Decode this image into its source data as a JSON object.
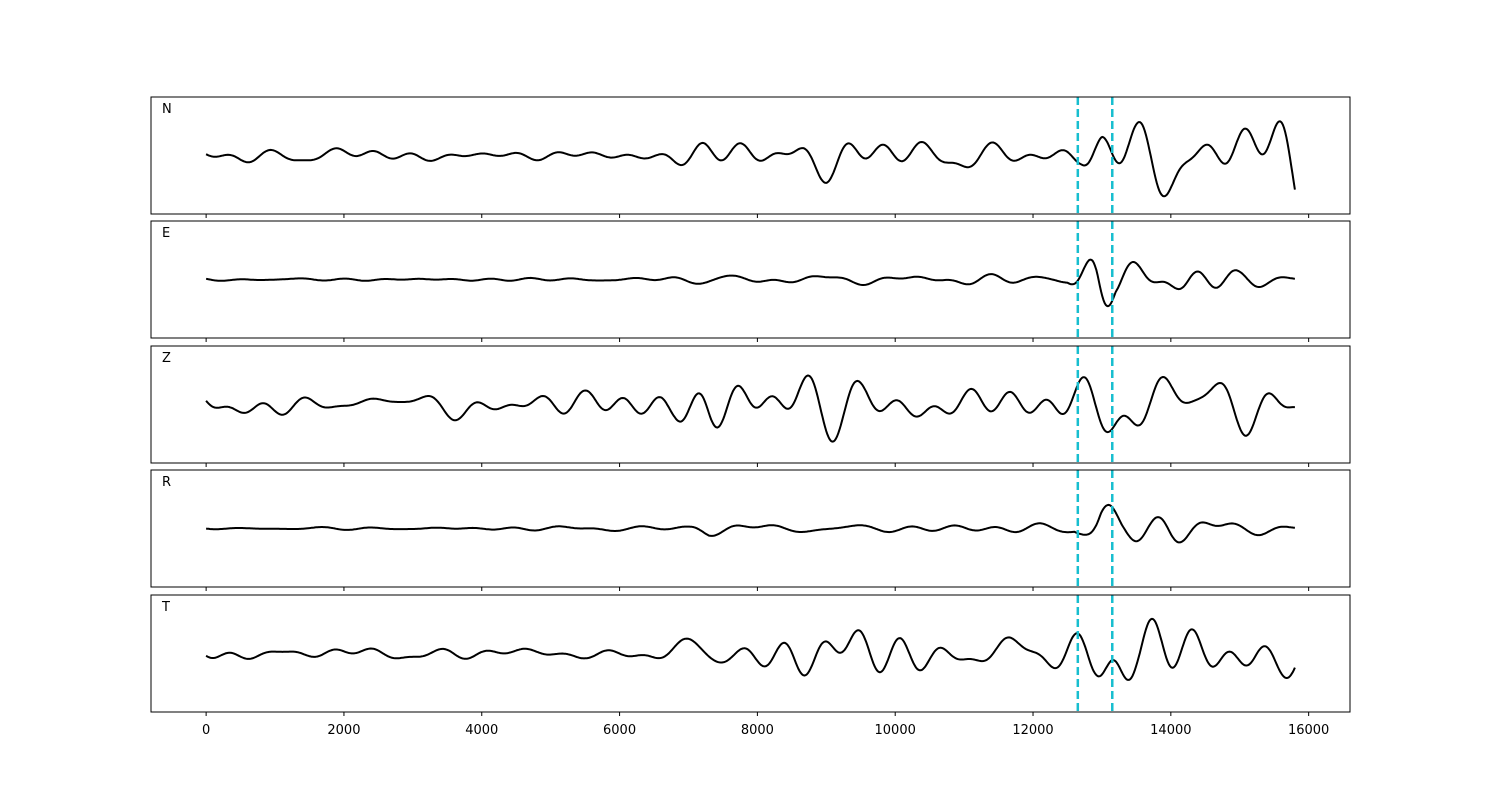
{
  "chart_data": {
    "type": "line",
    "title": "",
    "xlabel": "",
    "ylabel": "",
    "xlim": [
      -800,
      16600
    ],
    "xticks": [
      0,
      2000,
      4000,
      6000,
      8000,
      10000,
      12000,
      14000,
      16000
    ],
    "x_range": [
      0,
      15800
    ],
    "grid": false,
    "line_color": "#000000",
    "pick_color": "#17becf",
    "picks": [
      12650,
      13150
    ],
    "panels": [
      {
        "label": "N",
        "amplitude": 0.85,
        "envelope": [
          [
            0,
            0.12
          ],
          [
            1500,
            0.2
          ],
          [
            4000,
            0.12
          ],
          [
            6500,
            0.18
          ],
          [
            7200,
            0.4
          ],
          [
            8500,
            0.6
          ],
          [
            10000,
            0.45
          ],
          [
            12000,
            0.3
          ],
          [
            12700,
            0.35
          ],
          [
            13000,
            0.8
          ],
          [
            13500,
            0.75
          ],
          [
            14300,
            1.0
          ],
          [
            15800,
            0.9
          ]
        ]
      },
      {
        "label": "E",
        "amplitude": 0.85,
        "envelope": [
          [
            0,
            0.04
          ],
          [
            6000,
            0.05
          ],
          [
            7000,
            0.12
          ],
          [
            8000,
            0.15
          ],
          [
            10000,
            0.1
          ],
          [
            12500,
            0.14
          ],
          [
            12950,
            1.0
          ],
          [
            13200,
            0.4
          ],
          [
            14200,
            0.55
          ],
          [
            15000,
            0.2
          ],
          [
            15800,
            0.1
          ]
        ]
      },
      {
        "label": "Z",
        "amplitude": 0.9,
        "envelope": [
          [
            0,
            0.25
          ],
          [
            1500,
            0.3
          ],
          [
            5500,
            0.3
          ],
          [
            6800,
            0.5
          ],
          [
            7300,
            1.0
          ],
          [
            8600,
            1.0
          ],
          [
            9500,
            0.65
          ],
          [
            12000,
            0.6
          ],
          [
            13500,
            0.8
          ],
          [
            14500,
            0.95
          ],
          [
            15800,
            0.8
          ]
        ]
      },
      {
        "label": "R",
        "amplitude": 0.85,
        "envelope": [
          [
            0,
            0.04
          ],
          [
            7000,
            0.06
          ],
          [
            7300,
            0.15
          ],
          [
            11000,
            0.12
          ],
          [
            12600,
            0.18
          ],
          [
            12980,
            1.0
          ],
          [
            13300,
            0.4
          ],
          [
            14000,
            0.55
          ],
          [
            15000,
            0.2
          ],
          [
            15800,
            0.1
          ]
        ]
      },
      {
        "label": "T",
        "amplitude": 0.88,
        "envelope": [
          [
            0,
            0.15
          ],
          [
            5500,
            0.15
          ],
          [
            7000,
            0.3
          ],
          [
            8500,
            0.5
          ],
          [
            10500,
            0.4
          ],
          [
            12000,
            0.35
          ],
          [
            12900,
            0.8
          ],
          [
            13100,
            1.0
          ],
          [
            13500,
            0.7
          ],
          [
            15200,
            1.0
          ],
          [
            15800,
            0.6
          ]
        ]
      }
    ]
  }
}
